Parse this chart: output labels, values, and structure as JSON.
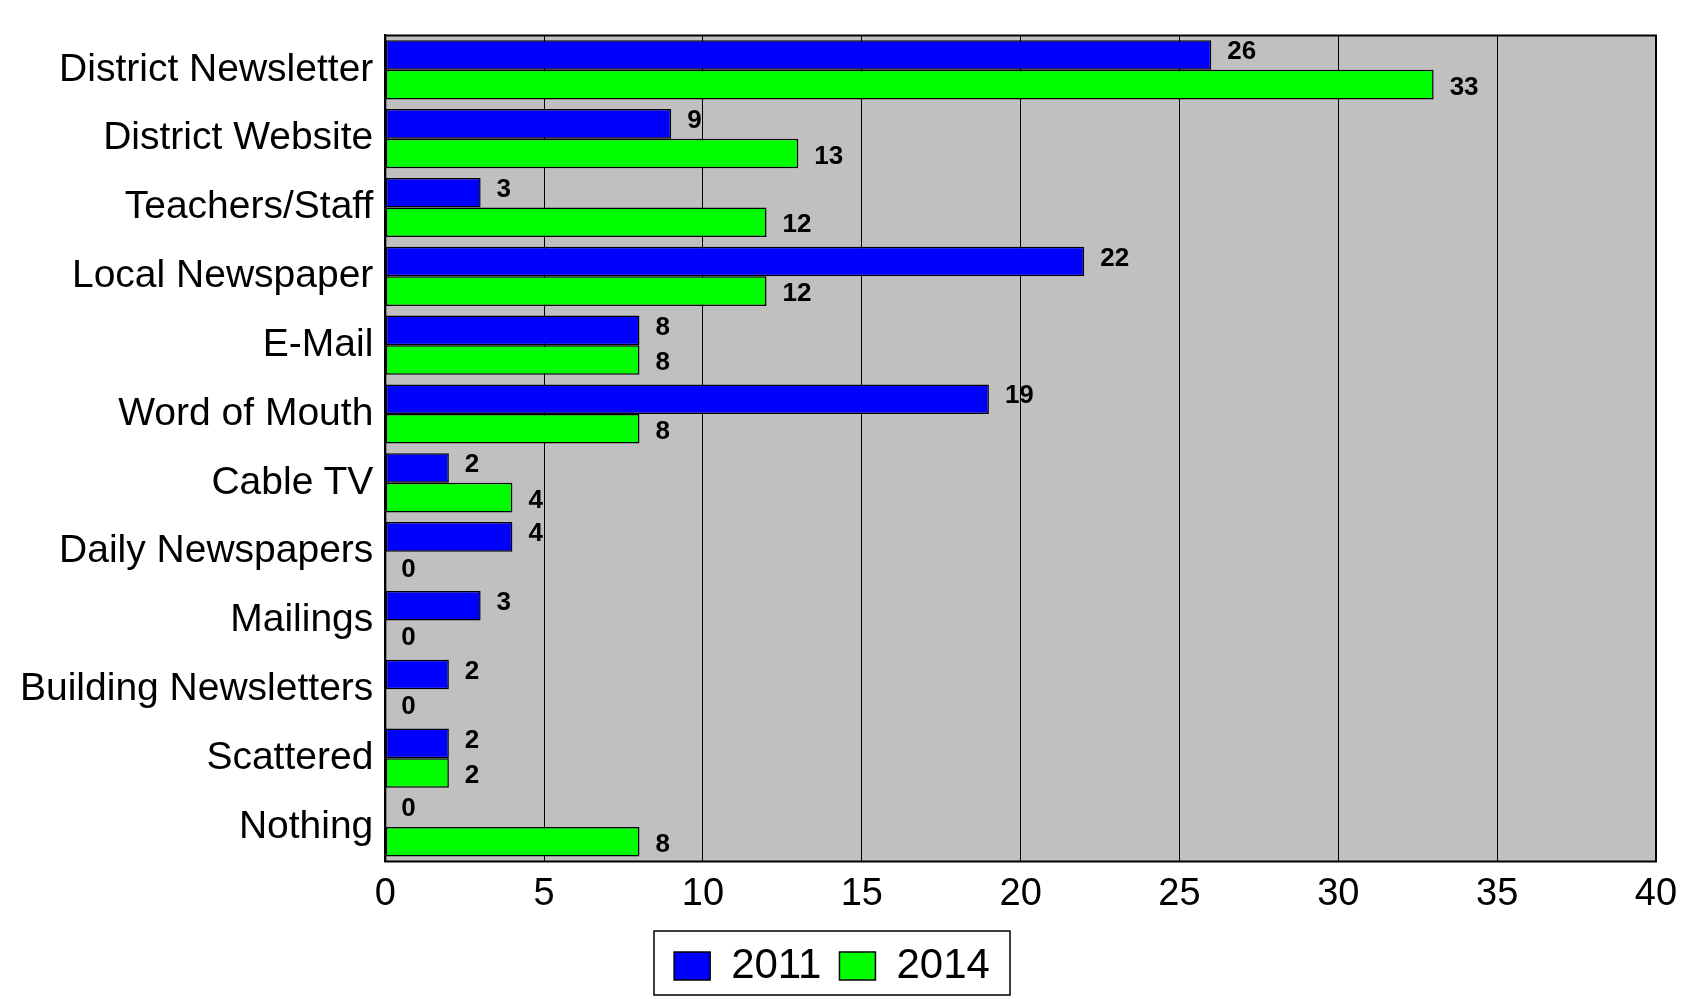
{
  "chart_data": {
    "type": "bar",
    "orientation": "horizontal",
    "categories": [
      "District Newsletter",
      "District Website",
      "Teachers/Staff",
      "Local Newspaper",
      "E-Mail",
      "Word of Mouth",
      "Cable TV",
      "Daily Newspapers",
      "Mailings",
      "Building Newsletters",
      "Scattered",
      "Nothing"
    ],
    "series": [
      {
        "name": "2011",
        "color": "#0000ff",
        "values": [
          26,
          9,
          3,
          22,
          8,
          19,
          2,
          4,
          3,
          2,
          2,
          0
        ]
      },
      {
        "name": "2014",
        "color": "#00ff00",
        "values": [
          33,
          13,
          12,
          12,
          8,
          8,
          4,
          0,
          0,
          0,
          2,
          8
        ]
      }
    ],
    "xlim": [
      0,
      40
    ],
    "xticks": [
      0,
      5,
      10,
      15,
      20,
      25,
      30,
      35,
      40
    ],
    "grid": "x",
    "legend": "bottom",
    "data_labels": true
  }
}
